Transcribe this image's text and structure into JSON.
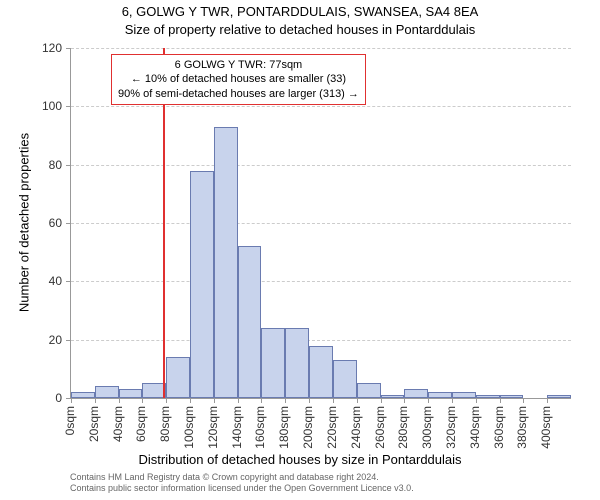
{
  "title": "6, GOLWG Y TWR, PONTARDDULAIS, SWANSEA, SA4 8EA",
  "subtitle": "Size of property relative to detached houses in Pontarddulais",
  "y_axis_title": "Number of detached properties",
  "x_axis_title": "Distribution of detached houses by size in Pontarddulais",
  "annotation": {
    "line1": "6 GOLWG Y TWR: 77sqm",
    "line2": "← 10% of detached houses are smaller (33)",
    "line3": "90% of semi-detached houses are larger (313) →"
  },
  "footer": {
    "line1": "Contains HM Land Registry data © Crown copyright and database right 2024.",
    "line2": "Contains public sector information licensed under the Open Government Licence v3.0."
  },
  "chart": {
    "type": "histogram",
    "x_categories": [
      "0sqm",
      "20sqm",
      "40sqm",
      "60sqm",
      "80sqm",
      "100sqm",
      "120sqm",
      "140sqm",
      "160sqm",
      "180sqm",
      "200sqm",
      "220sqm",
      "240sqm",
      "260sqm",
      "280sqm",
      "300sqm",
      "320sqm",
      "340sqm",
      "360sqm",
      "380sqm",
      "400sqm"
    ],
    "x_step": 20,
    "y_ticks": [
      0,
      20,
      40,
      60,
      80,
      100,
      120
    ],
    "ylim": [
      0,
      120
    ],
    "bar_values": [
      2,
      4,
      3,
      5,
      14,
      78,
      93,
      52,
      24,
      24,
      18,
      13,
      5,
      1,
      3,
      2,
      2,
      1,
      1,
      0,
      1
    ],
    "bar_fill": "#c8d3ec",
    "bar_border": "#6a7bb0",
    "reference_x": 77,
    "reference_color": "#e03030",
    "grid_color": "#cccccc",
    "background": "#ffffff",
    "title_fontsize": 13,
    "label_fontsize": 12,
    "axis_title_fontsize": 13
  }
}
